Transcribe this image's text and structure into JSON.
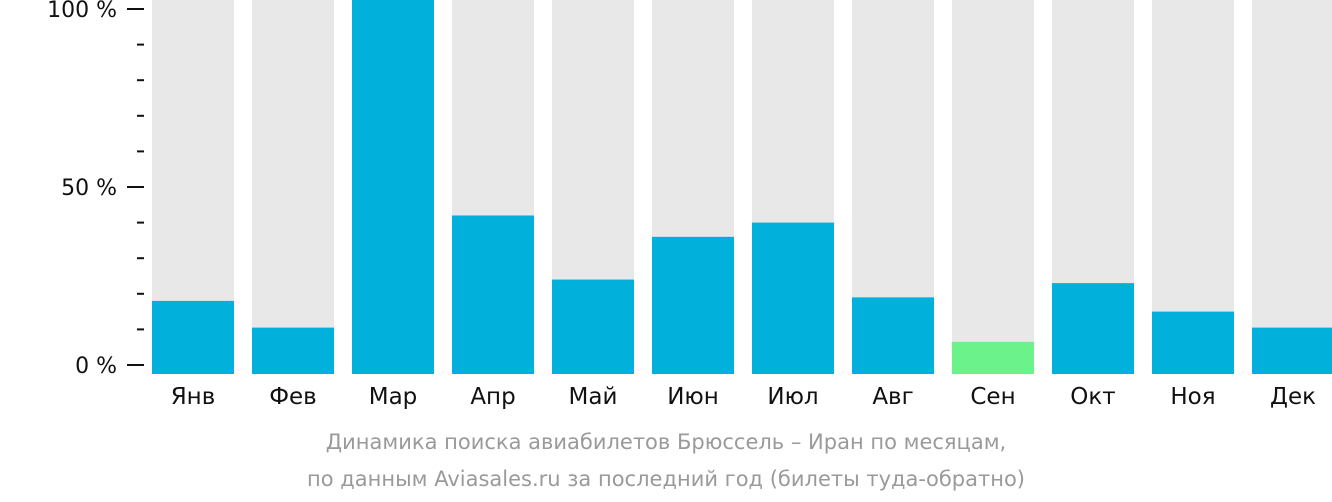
{
  "chart_data": {
    "type": "bar",
    "categories": [
      "Янв",
      "Фев",
      "Мар",
      "Апр",
      "Май",
      "Июн",
      "Июл",
      "Авг",
      "Сен",
      "Окт",
      "Ноя",
      "Дек"
    ],
    "values": [
      18,
      10.5,
      100,
      42,
      24,
      36,
      40,
      19,
      6.5,
      23,
      15,
      10.5
    ],
    "ylim": [
      0,
      100
    ],
    "yticks": [
      {
        "value": 0,
        "label": "0 %"
      },
      {
        "value": 50,
        "label": "50 %"
      },
      {
        "value": 100,
        "label": "100 %"
      }
    ],
    "minor_tick_step": 10,
    "highlight_index": 8,
    "colors": {
      "bar": "#02b0dc",
      "highlight": "#6cf28a",
      "background_bar": "#e8e8e9",
      "axis": "#111111"
    },
    "grid": false,
    "legend": "none"
  },
  "caption": {
    "line1": "Динамика поиска авиабилетов Брюссель – Иран по месяцам,",
    "line2": "по данным Aviasales.ru за последний год (билеты туда-обратно)"
  }
}
